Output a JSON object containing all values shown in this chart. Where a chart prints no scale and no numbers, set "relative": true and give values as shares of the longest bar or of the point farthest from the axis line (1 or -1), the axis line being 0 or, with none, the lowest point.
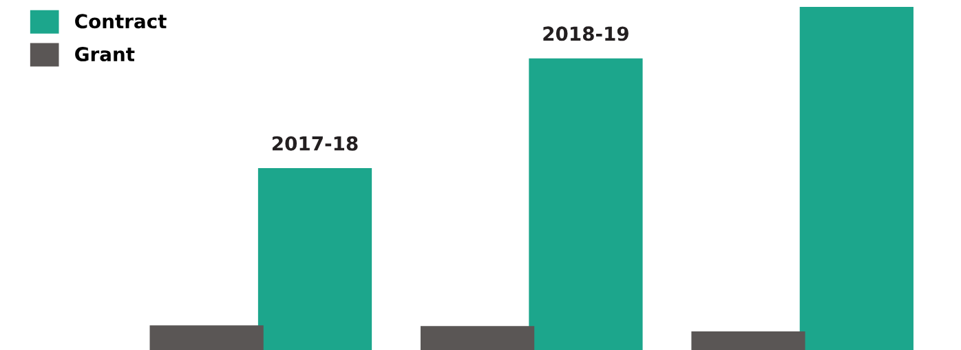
{
  "chart_data": {
    "type": "bar",
    "relative": true,
    "categories": [
      "2017-18",
      "2018-19",
      null
    ],
    "series": [
      {
        "name": "Grant",
        "color": "#5a5655",
        "values": [
          0.072,
          0.07,
          0.054
        ]
      },
      {
        "name": "Contract",
        "color": "#1ca68c",
        "values": [
          0.53,
          0.85,
          1.0
        ]
      }
    ],
    "legend": "top left"
  }
}
